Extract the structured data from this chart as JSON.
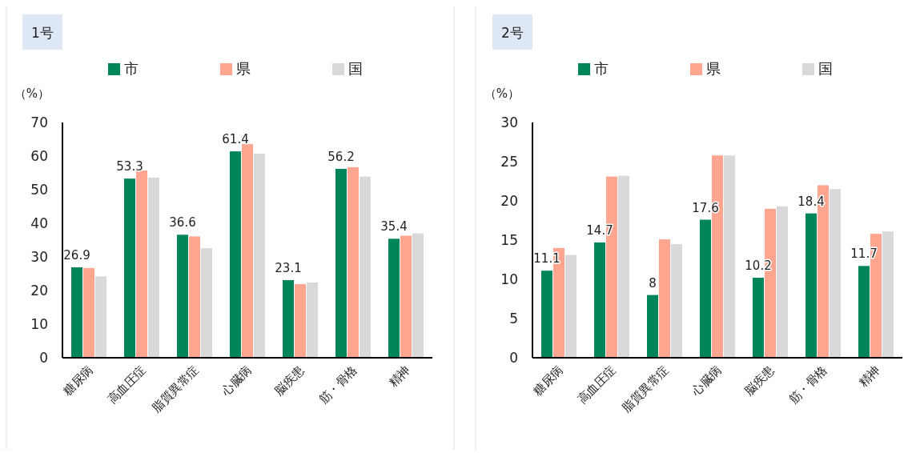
{
  "chart_data": [
    {
      "type": "bar",
      "title": "1号",
      "ylabel": "（%）",
      "categories": [
        "糖尿病",
        "高血圧症",
        "脂質異常症",
        "心臓病",
        "脳疾患",
        "筋・骨格",
        "精神"
      ],
      "series": [
        {
          "name": "市",
          "color": "#00855a",
          "values": [
            26.9,
            53.3,
            36.6,
            61.4,
            23.1,
            56.2,
            35.4
          ],
          "value_labels": [
            "26.9",
            "53.3",
            "36.6",
            "61.4",
            "23.1",
            "56.2",
            "35.4"
          ]
        },
        {
          "name": "県",
          "color": "#ffa590",
          "values": [
            26.7,
            55.7,
            36.1,
            63.6,
            21.9,
            56.7,
            36.3
          ]
        },
        {
          "name": "国",
          "color": "#d9d9d9",
          "values": [
            24.2,
            53.6,
            32.6,
            60.7,
            22.4,
            53.9,
            37.0
          ]
        }
      ],
      "ylim": [
        0,
        70
      ],
      "yticks": [
        0,
        10,
        20,
        30,
        40,
        50,
        60,
        70
      ],
      "grid": false,
      "legend": "top"
    },
    {
      "type": "bar",
      "title": "2号",
      "ylabel": "（%）",
      "categories": [
        "糖尿病",
        "高血圧症",
        "脂質異常症",
        "心臓病",
        "脳疾患",
        "筋・骨格",
        "精神"
      ],
      "series": [
        {
          "name": "市",
          "color": "#00855a",
          "values": [
            11.1,
            14.7,
            8,
            17.6,
            10.2,
            18.4,
            11.7
          ],
          "value_labels": [
            "11.1",
            "14.7",
            "8",
            "17.6",
            "10.2",
            "18.4",
            "11.7"
          ]
        },
        {
          "name": "県",
          "color": "#ffa590",
          "values": [
            14.0,
            23.1,
            15.1,
            25.8,
            19.0,
            22.0,
            15.8
          ]
        },
        {
          "name": "国",
          "color": "#d9d9d9",
          "values": [
            13.1,
            23.2,
            14.5,
            25.8,
            19.3,
            21.5,
            16.1
          ]
        }
      ],
      "ylim": [
        0,
        30
      ],
      "yticks": [
        0,
        5,
        10,
        15,
        20,
        25,
        30
      ],
      "grid": false,
      "legend": "top"
    }
  ]
}
